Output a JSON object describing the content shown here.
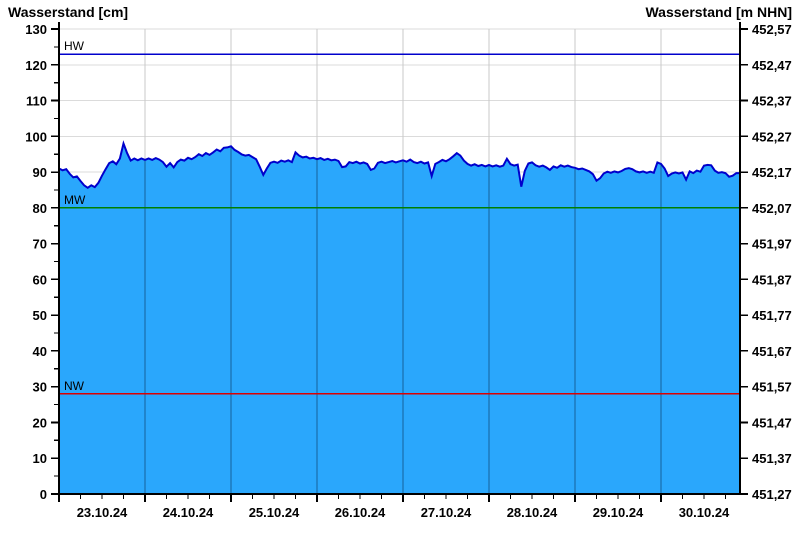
{
  "header": {
    "left_axis_title": "Wasserstand [cm]",
    "right_axis_title": "Wasserstand [m NHN]"
  },
  "chart_data": {
    "type": "area",
    "title": "",
    "xlabel": "",
    "ylabel_left": "Wasserstand [cm]",
    "ylabel_right": "Wasserstand [m NHN]",
    "background": "#FFFFFF",
    "grid": true,
    "x_start": "23.10.24 00:00",
    "x_end": "30.10.24 22:00",
    "x_tick_labels": [
      "23.10.24",
      "24.10.24",
      "25.10.24",
      "26.10.24",
      "27.10.24",
      "28.10.24",
      "29.10.24",
      "30.10.24"
    ],
    "x_minor_tick_hours": 6,
    "y_left_axis": {
      "min": 0,
      "max": 130,
      "major_step": 10,
      "minor_step": 5,
      "tick_labels": [
        "0",
        "10",
        "20",
        "30",
        "40",
        "50",
        "60",
        "70",
        "80",
        "90",
        "100",
        "110",
        "120",
        "130"
      ]
    },
    "y_right_axis": {
      "min_label": "451,27",
      "max_label": "452,57",
      "tick_labels_top_to_bottom": [
        "452,57",
        "452,47",
        "452,37",
        "452,27",
        "452,17",
        "452,07",
        "451,97",
        "451,87",
        "451,77",
        "451,67",
        "451,57",
        "451,47",
        "451,37",
        "451,27"
      ]
    },
    "reference_lines": [
      {
        "name": "HW",
        "value_cm": 123,
        "color": "#0000CC"
      },
      {
        "name": "MW",
        "value_cm": 80,
        "color": "#007F00"
      },
      {
        "name": "NW",
        "value_cm": 28,
        "color": "#DD0000"
      }
    ],
    "colors": {
      "series_line": "#0000CC",
      "series_fill": "#2AA7FC",
      "h_grid": "#DBDBDB",
      "v_grid_light": "#C9C9C9",
      "v_grid_over_fill": "rgba(0,30,55,0.5)",
      "axis": "#000000"
    },
    "series": [
      {
        "name": "Wasserstand",
        "unit": "cm",
        "sampling": "hourly from 23.10.24 00:00",
        "values_cm": [
          91.0,
          90.5,
          90.8,
          89.5,
          88.5,
          88.8,
          87.5,
          86.3,
          85.6,
          86.3,
          85.8,
          87.0,
          89.0,
          90.8,
          92.5,
          93.0,
          92.2,
          93.8,
          98.0,
          95.3,
          93.2,
          93.8,
          93.3,
          93.8,
          93.4,
          93.8,
          93.4,
          93.9,
          93.5,
          92.8,
          91.5,
          92.5,
          91.3,
          92.8,
          93.5,
          93.2,
          94.0,
          93.6,
          94.2,
          95.0,
          94.5,
          95.3,
          94.8,
          95.5,
          96.3,
          95.8,
          96.8,
          96.9,
          97.2,
          96.2,
          95.6,
          94.9,
          94.6,
          94.8,
          94.2,
          93.6,
          91.5,
          89.2,
          91.0,
          92.6,
          92.9,
          92.6,
          93.2,
          92.9,
          93.3,
          92.8,
          95.5,
          94.6,
          94.1,
          94.3,
          93.8,
          94.0,
          93.6,
          93.9,
          93.4,
          93.7,
          93.3,
          93.5,
          93.1,
          91.4,
          91.6,
          92.8,
          92.5,
          92.9,
          92.4,
          92.7,
          92.3,
          90.6,
          91.0,
          92.6,
          92.9,
          92.5,
          92.8,
          93.1,
          92.7,
          93.0,
          93.3,
          92.9,
          93.5,
          92.8,
          92.5,
          92.9,
          92.4,
          92.7,
          88.9,
          92.3,
          92.8,
          93.4,
          93.0,
          93.6,
          94.4,
          95.3,
          94.6,
          93.2,
          92.3,
          91.8,
          92.2,
          91.7,
          92.0,
          91.6,
          92.0,
          91.6,
          91.9,
          91.5,
          91.8,
          93.7,
          92.2,
          91.8,
          92.1,
          85.9,
          90.3,
          92.4,
          92.7,
          91.9,
          91.5,
          91.8,
          91.3,
          90.6,
          91.6,
          91.2,
          91.9,
          91.5,
          91.8,
          91.4,
          91.2,
          90.8,
          91.0,
          90.6,
          90.2,
          89.4,
          87.6,
          88.3,
          89.6,
          90.1,
          89.8,
          90.2,
          89.9,
          90.3,
          90.9,
          91.1,
          90.8,
          90.2,
          89.9,
          90.2,
          89.8,
          90.1,
          89.8,
          92.7,
          92.3,
          91.0,
          88.9,
          89.6,
          89.9,
          89.6,
          89.9,
          87.9,
          90.2,
          89.7,
          90.4,
          90.1,
          91.8,
          92.0,
          91.9,
          90.4,
          89.8,
          90.0,
          89.7,
          88.7,
          89.0,
          89.7
        ]
      }
    ]
  }
}
